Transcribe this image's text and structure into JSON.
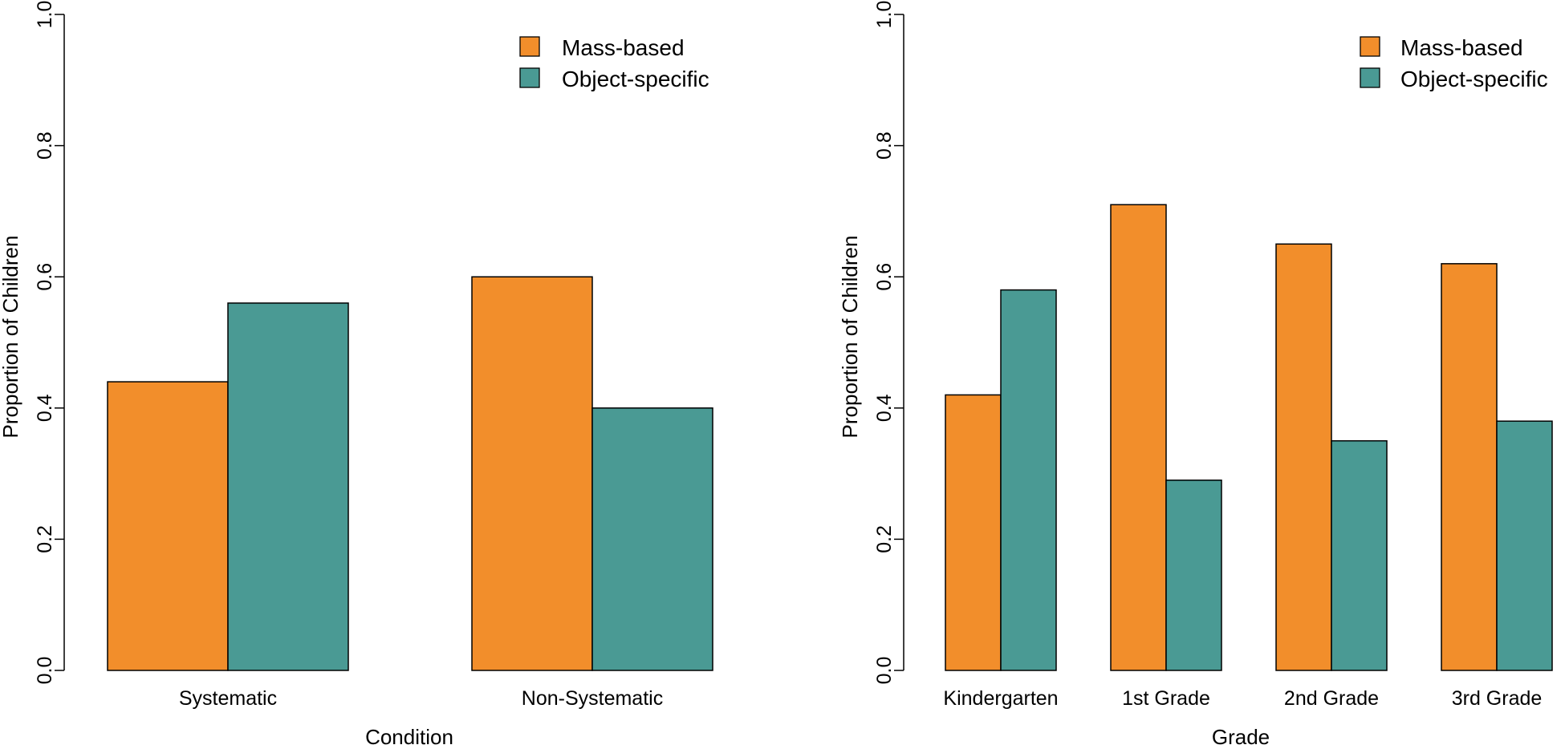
{
  "colors": {
    "mass": "#F28E2B",
    "object": "#4A9A94",
    "stroke": "#000000"
  },
  "chart_data": [
    {
      "type": "bar",
      "title": "",
      "xlabel": "Condition",
      "ylabel": "Proportion of Children",
      "ylim": [
        0,
        1
      ],
      "yticks": [
        "0.0",
        "0.2",
        "0.4",
        "0.6",
        "0.8",
        "1.0"
      ],
      "categories": [
        "Systematic",
        "Non-Systematic"
      ],
      "series": [
        {
          "name": "Mass-based",
          "values": [
            0.44,
            0.6
          ]
        },
        {
          "name": "Object-specific",
          "values": [
            0.56,
            0.4
          ]
        }
      ],
      "legend_position": "top-right"
    },
    {
      "type": "bar",
      "title": "",
      "xlabel": "Grade",
      "ylabel": "Proportion of Children",
      "ylim": [
        0,
        1
      ],
      "yticks": [
        "0.0",
        "0.2",
        "0.4",
        "0.6",
        "0.8",
        "1.0"
      ],
      "categories": [
        "Kindergarten",
        "1st Grade",
        "2nd Grade",
        "3rd Grade"
      ],
      "series": [
        {
          "name": "Mass-based",
          "values": [
            0.42,
            0.71,
            0.65,
            0.62
          ]
        },
        {
          "name": "Object-specific",
          "values": [
            0.58,
            0.29,
            0.35,
            0.38
          ]
        }
      ],
      "legend_position": "top-right"
    }
  ]
}
